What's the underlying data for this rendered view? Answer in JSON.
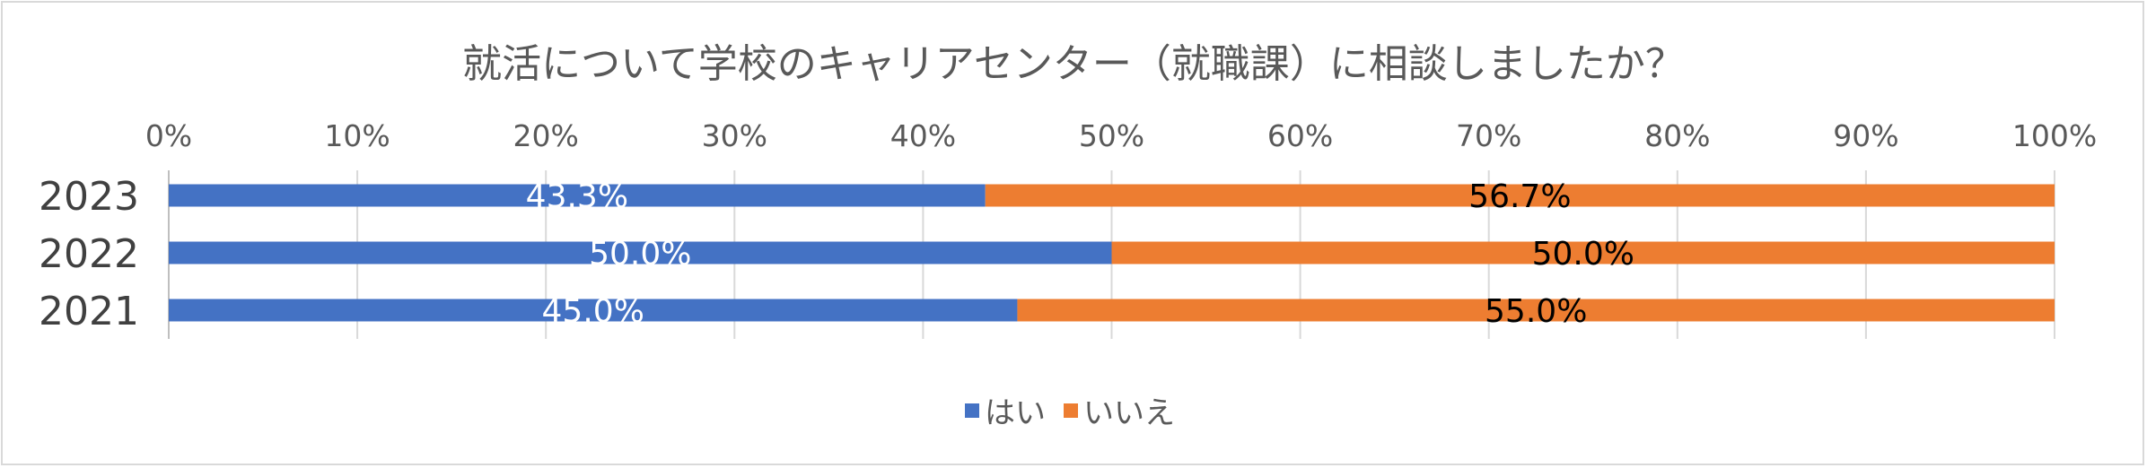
{
  "chart_data": {
    "type": "bar",
    "orientation": "horizontal",
    "stacked": "percent",
    "title": "就活について学校のキャリアセンター（就職課）に相談しましたか？",
    "categories": [
      "2023",
      "2022",
      "2021"
    ],
    "series": [
      {
        "name": "はい",
        "color": "#4472c4",
        "label_color": "#ffffff",
        "values": [
          43.3,
          50.0,
          45.0
        ],
        "labels": [
          "43.3%",
          "50.0%",
          "45.0%"
        ]
      },
      {
        "name": "いいえ",
        "color": "#ed7d31",
        "label_color": "#000000",
        "values": [
          56.7,
          50.0,
          55.0
        ],
        "labels": [
          "56.7%",
          "50.0%",
          "55.0%"
        ]
      }
    ],
    "xlim": [
      0,
      100
    ],
    "xticks": [
      "0%",
      "10%",
      "20%",
      "30%",
      "40%",
      "50%",
      "60%",
      "70%",
      "80%",
      "90%",
      "100%"
    ],
    "grid": true,
    "legend_position": "bottom"
  }
}
